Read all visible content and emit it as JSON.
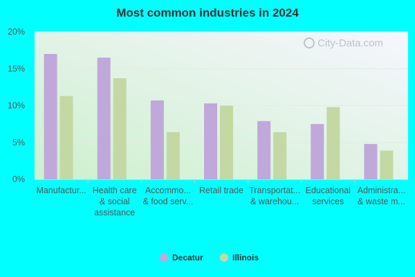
{
  "chart_data": {
    "type": "bar",
    "title": "Most common industries in 2024",
    "categories": [
      [
        "Manufactur..."
      ],
      [
        "Health care",
        "& social",
        "assistance"
      ],
      [
        "Accommo...",
        "& food serv..."
      ],
      [
        "Retail trade"
      ],
      [
        "Transportat...",
        "& warehou..."
      ],
      [
        "Educational",
        "services"
      ],
      [
        "Administra...",
        "& waste m..."
      ]
    ],
    "series": [
      {
        "name": "Decatur",
        "color": "#c0a8da",
        "values": [
          17.0,
          16.5,
          10.7,
          10.3,
          7.9,
          7.5,
          4.8
        ]
      },
      {
        "name": "Illinois",
        "color": "#c4d8a4",
        "values": [
          11.3,
          13.7,
          6.4,
          10.0,
          6.4,
          9.8,
          3.9
        ]
      }
    ],
    "ylim": [
      0,
      20
    ],
    "yticks": [
      "0%",
      "5%",
      "10%",
      "15%",
      "20%"
    ],
    "ytick_values": [
      0,
      5,
      10,
      15,
      20
    ],
    "grid": true,
    "legend": "bottom-center",
    "watermark": "City-Data.com"
  }
}
